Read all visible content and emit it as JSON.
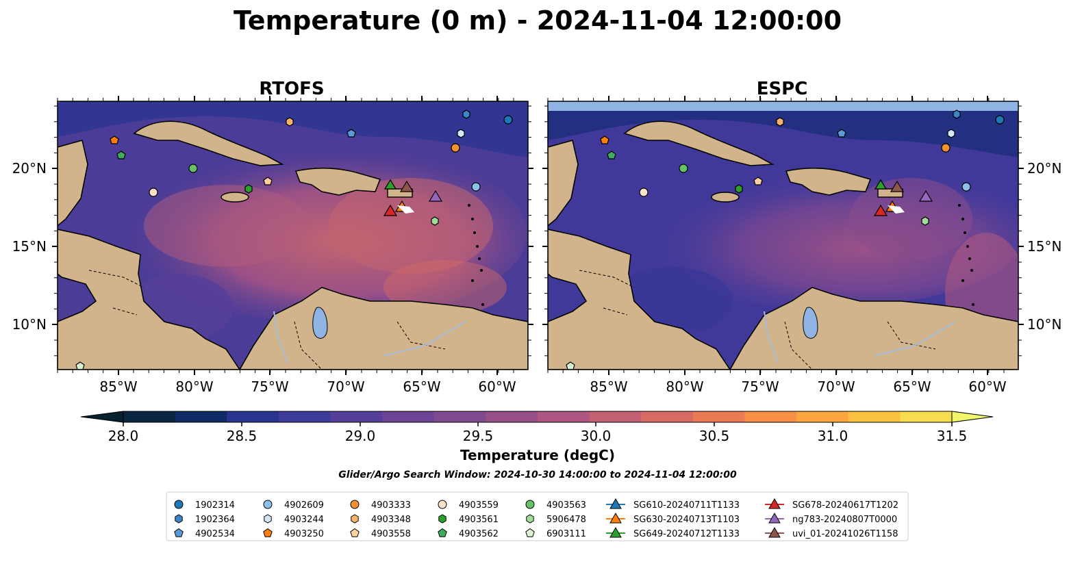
{
  "title": "Temperature (0 m) - 2024-11-04 12:00:00",
  "panels": [
    {
      "title": "RTOFS"
    },
    {
      "title": "ESPC"
    }
  ],
  "lon_ticks": [
    "85°W",
    "80°W",
    "75°W",
    "70°W",
    "65°W",
    "60°W"
  ],
  "lat_ticks": [
    "20°N",
    "15°N",
    "10°N"
  ],
  "colorbar": {
    "label": "Temperature (degC)",
    "ticks": [
      "28.0",
      "28.5",
      "29.0",
      "29.5",
      "30.0",
      "30.5",
      "31.0",
      "31.5"
    ],
    "colors": [
      "#0a2640",
      "#102a66",
      "#28348f",
      "#3d3b99",
      "#553f98",
      "#6b4495",
      "#804a8f",
      "#974f88",
      "#ac5681",
      "#c25f73",
      "#d86b64",
      "#eb7b55",
      "#f79045",
      "#faa53d",
      "#fac040",
      "#f5dd4f"
    ],
    "extend_low": "#05202e",
    "extend_high": "#f0f56a"
  },
  "search_window": "Glider/Argo Search Window: 2024-10-30 14:00:00 to 2024-11-04 12:00:00",
  "legend": {
    "columns": [
      [
        {
          "label": "1902314",
          "marker": "circle",
          "color": "#1f77b4"
        },
        {
          "label": "1902364",
          "marker": "hexagon",
          "color": "#3d85c6"
        },
        {
          "label": "4902534",
          "marker": "pentagon",
          "color": "#5b9bd5"
        }
      ],
      [
        {
          "label": "4902609",
          "marker": "circle",
          "color": "#8ec1ea"
        },
        {
          "label": "4903244",
          "marker": "hexagon",
          "color": "#d4e8f7"
        },
        {
          "label": "4903250",
          "marker": "pentagon",
          "color": "#ff7f0e"
        }
      ],
      [
        {
          "label": "4903333",
          "marker": "circle",
          "color": "#f5922f"
        },
        {
          "label": "4903348",
          "marker": "hexagon",
          "color": "#fbb26a"
        },
        {
          "label": "4903558",
          "marker": "pentagon",
          "color": "#fdd0a2"
        }
      ],
      [
        {
          "label": "4903559",
          "marker": "circle",
          "color": "#fde3cc"
        },
        {
          "label": "4903561",
          "marker": "hexagon",
          "color": "#2ca02c"
        },
        {
          "label": "4903562",
          "marker": "pentagon",
          "color": "#41ab5d"
        }
      ],
      [
        {
          "label": "4903563",
          "marker": "circle",
          "color": "#66c266"
        },
        {
          "label": "5906478",
          "marker": "hexagon",
          "color": "#a1dc9b"
        },
        {
          "label": "6903111",
          "marker": "pentagon",
          "color": "#d9f2d0"
        }
      ],
      [
        {
          "label": "SG610-20240711T1133",
          "marker": "triangle",
          "color": "#1f77b4"
        },
        {
          "label": "SG630-20240713T1103",
          "marker": "triangle",
          "color": "#ff7f0e"
        },
        {
          "label": "SG649-20240712T1133",
          "marker": "triangle",
          "color": "#2ca02c"
        }
      ],
      [
        {
          "label": "SG678-20240617T1202",
          "marker": "triangle",
          "color": "#d62728"
        },
        {
          "label": "ng783-20240807T0000",
          "marker": "triangle",
          "color": "#9467bd"
        },
        {
          "label": "uvi_01-20241026T1158",
          "marker": "triangle",
          "color": "#8c564b"
        }
      ]
    ]
  },
  "map_colors": {
    "land": "#d2b48c",
    "ocean_base": "#5a3f95",
    "lake": "#8fb3e3",
    "rivers": "#a6bddb"
  }
}
